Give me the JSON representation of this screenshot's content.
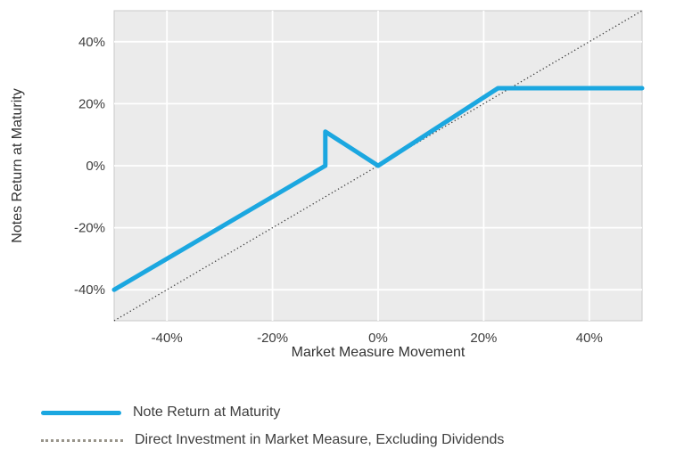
{
  "page": {
    "background": "#ffffff"
  },
  "chart_data": {
    "type": "line",
    "title": "",
    "xlabel": "Market Measure Movement",
    "ylabel": "Notes Return at Maturity",
    "xlim": [
      -50,
      50
    ],
    "ylim": [
      -50,
      50
    ],
    "x_ticks": [
      -40,
      -20,
      0,
      20,
      40
    ],
    "y_ticks": [
      -40,
      -20,
      0,
      20,
      40
    ],
    "tick_suffix": "%",
    "grid": true,
    "plot_bg": "#ebebeb",
    "plot_border": "#c8c8c8",
    "grid_color": "#ffffff",
    "series": [
      {
        "name": "Direct Investment in Market Measure, Excluding Dividends",
        "style": "dotted",
        "color": "#3c3c3c",
        "width": 1.3,
        "points": [
          [
            -50,
            -50
          ],
          [
            50,
            50
          ]
        ]
      },
      {
        "name": "Note Return at Maturity",
        "style": "solid",
        "color": "#1ba7e0",
        "width": 5,
        "points": [
          [
            -50,
            -40
          ],
          [
            -10,
            0
          ],
          [
            -10,
            11
          ],
          [
            0,
            0
          ],
          [
            22.7,
            25
          ],
          [
            50,
            25
          ]
        ]
      }
    ]
  },
  "legend": {
    "items": [
      {
        "label": "Note Return at Maturity",
        "swatch": "solid",
        "color": "#1ba7e0"
      },
      {
        "label": "Direct Investment in Market Measure, Excluding Dividends",
        "swatch": "dotted",
        "color": "#98948a"
      }
    ]
  }
}
